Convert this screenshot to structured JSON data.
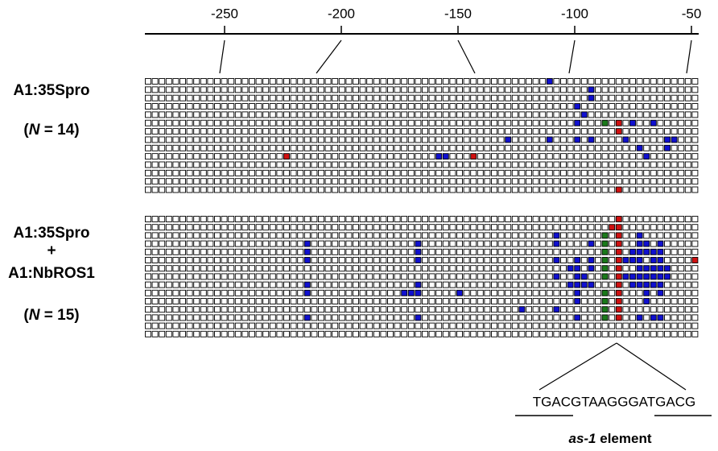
{
  "axis": {
    "ticks": [
      -250,
      -200,
      -150,
      -100,
      -50
    ]
  },
  "columns": 80,
  "panels": [
    {
      "labels": [
        "A1:35Spro"
      ],
      "sample_size": [
        "(",
        "N",
        " = 14)"
      ],
      "rows": [
        {
          "blue": [
            58
          ],
          "green": [],
          "red": []
        },
        {
          "blue": [
            64
          ],
          "green": [],
          "red": []
        },
        {
          "blue": [
            64
          ],
          "green": [],
          "red": []
        },
        {
          "blue": [
            62
          ],
          "green": [],
          "red": []
        },
        {
          "blue": [
            63
          ],
          "green": [],
          "red": []
        },
        {
          "blue": [
            62,
            70,
            73
          ],
          "green": [
            66
          ],
          "red": [
            68
          ]
        },
        {
          "blue": [],
          "green": [],
          "red": [
            68
          ]
        },
        {
          "blue": [
            52,
            58,
            62,
            64,
            69,
            75,
            76
          ],
          "green": [],
          "red": []
        },
        {
          "blue": [
            71,
            75
          ],
          "green": [],
          "red": []
        },
        {
          "blue": [
            42,
            43,
            72
          ],
          "green": [],
          "red": [
            20,
            47
          ]
        },
        {
          "blue": [],
          "green": [],
          "red": []
        },
        {
          "blue": [],
          "green": [],
          "red": []
        },
        {
          "blue": [],
          "green": [],
          "red": []
        },
        {
          "blue": [],
          "green": [],
          "red": [
            68
          ]
        }
      ]
    },
    {
      "labels": [
        "A1:35Spro",
        "+",
        "A1:NbROS1"
      ],
      "sample_size": [
        "(",
        "N",
        " = 15)"
      ],
      "rows": [
        {
          "blue": [],
          "green": [],
          "red": [
            68
          ]
        },
        {
          "blue": [],
          "green": [],
          "red": [
            67,
            68
          ]
        },
        {
          "blue": [
            59,
            71
          ],
          "green": [
            66
          ],
          "red": [
            68
          ]
        },
        {
          "blue": [
            23,
            39,
            59,
            64,
            71,
            72,
            74
          ],
          "green": [
            66
          ],
          "red": [
            68
          ]
        },
        {
          "blue": [
            23,
            39,
            70,
            71,
            72,
            73,
            74
          ],
          "green": [
            66
          ],
          "red": [
            68
          ]
        },
        {
          "blue": [
            23,
            39,
            59,
            62,
            64,
            69,
            70,
            71,
            73,
            74
          ],
          "green": [
            66
          ],
          "red": [
            68,
            79
          ]
        },
        {
          "blue": [
            61,
            62,
            64,
            71,
            72,
            73,
            74,
            75
          ],
          "green": [
            66
          ],
          "red": [
            68
          ]
        },
        {
          "blue": [
            59,
            62,
            63,
            69,
            70,
            71,
            72,
            73,
            74,
            75
          ],
          "green": [
            66
          ],
          "red": [
            68
          ]
        },
        {
          "blue": [
            23,
            39,
            61,
            62,
            63,
            64,
            70,
            71,
            72,
            73,
            74
          ],
          "green": [],
          "red": [
            68
          ]
        },
        {
          "blue": [
            23,
            37,
            38,
            39,
            45,
            62,
            72,
            74
          ],
          "green": [
            66
          ],
          "red": [
            68
          ]
        },
        {
          "blue": [
            62,
            72
          ],
          "green": [
            66
          ],
          "red": [
            68
          ]
        },
        {
          "blue": [
            54,
            59
          ],
          "green": [
            66
          ],
          "red": [
            68
          ]
        },
        {
          "blue": [
            23,
            39,
            62,
            71,
            73,
            74
          ],
          "green": [
            66
          ],
          "red": [
            68
          ]
        },
        {
          "blue": [],
          "green": [],
          "red": []
        },
        {
          "blue": [],
          "green": [],
          "red": []
        }
      ]
    }
  ],
  "sequence": "TGACGTAAGGGATGACG",
  "element_label": [
    "as-1",
    " element"
  ]
}
